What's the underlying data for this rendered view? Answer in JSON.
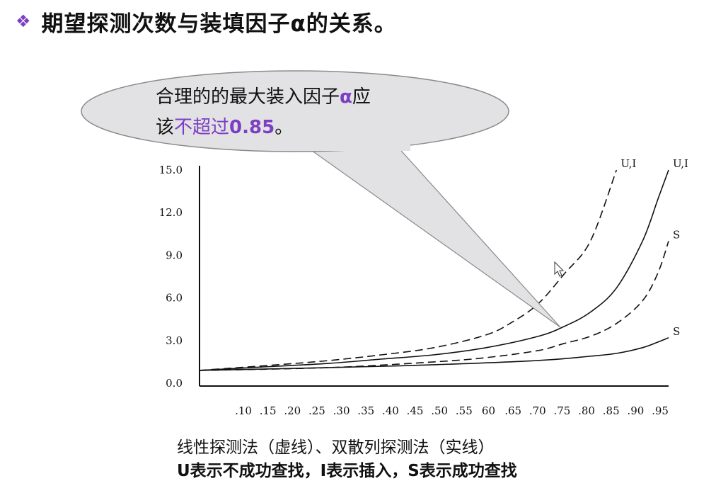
{
  "slide": {
    "bullet_icon": "diamond-bullet-icon",
    "title": "期望探测次数与装填因子α的关系。"
  },
  "callout": {
    "line1_part1": "合理的的最大装入因子",
    "line1_alpha": "α",
    "line1_part2": "应",
    "line2_part1": "该",
    "line2_highlight": "不超过",
    "line2_bold": "0.85",
    "line2_end": "。",
    "accent_color": "#7c3fc4"
  },
  "caption": {
    "line1": "线性探测法（虚线）、双散列探测法（实线）",
    "line2": "U表示不成功查找，I表示插入，S表示成功查找"
  },
  "chart_data": {
    "type": "line",
    "xlabel": "",
    "ylabel": "",
    "x_tick_labels": [
      ".10",
      ".15",
      ".20",
      ".25",
      ".30",
      ".35",
      ".40",
      ".45",
      ".50",
      ".55",
      "60",
      ".65",
      ".70",
      ".75",
      ".80",
      ".85",
      ".90",
      ".95"
    ],
    "y_tick_labels": [
      "15.0",
      "12.0",
      "9.0",
      "6.0",
      "3.0",
      "0.0"
    ],
    "ylim": [
      0,
      15
    ],
    "xlim": [
      0.05,
      0.95
    ],
    "grid": false,
    "series": [
      {
        "name": "U,I",
        "style": "dashed",
        "x": [
          0.05,
          0.2,
          0.3,
          0.4,
          0.5,
          0.6,
          0.65,
          0.7,
          0.75,
          0.8,
          0.85
        ],
        "y": [
          0.9,
          1.3,
          1.6,
          2.0,
          2.5,
          3.4,
          4.3,
          5.6,
          7.7,
          10.0,
          15.0
        ]
      },
      {
        "name": "U,I",
        "style": "solid",
        "x": [
          0.05,
          0.2,
          0.3,
          0.4,
          0.5,
          0.6,
          0.7,
          0.75,
          0.8,
          0.85,
          0.9,
          0.93,
          0.95
        ],
        "y": [
          0.9,
          1.2,
          1.4,
          1.7,
          2.0,
          2.5,
          3.3,
          4.0,
          5.0,
          6.7,
          10.0,
          13.0,
          15.0
        ]
      },
      {
        "name": "S",
        "style": "dashed",
        "x": [
          0.05,
          0.3,
          0.5,
          0.6,
          0.7,
          0.75,
          0.8,
          0.85,
          0.9,
          0.93,
          0.95
        ],
        "y": [
          0.9,
          1.1,
          1.5,
          1.8,
          2.3,
          2.8,
          3.3,
          4.2,
          5.8,
          7.8,
          10.0
        ]
      },
      {
        "name": "S",
        "style": "solid",
        "x": [
          0.05,
          0.3,
          0.5,
          0.7,
          0.8,
          0.85,
          0.9,
          0.93,
          0.95
        ],
        "y": [
          0.9,
          1.1,
          1.3,
          1.6,
          1.9,
          2.1,
          2.5,
          2.9,
          3.2
        ]
      }
    ]
  }
}
